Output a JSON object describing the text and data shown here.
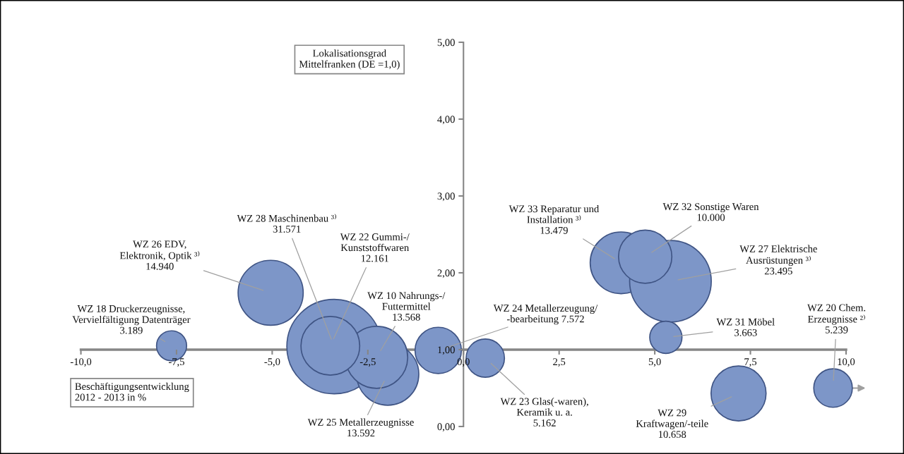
{
  "chart_data": {
    "type": "bubble",
    "xlabel": "Beschäftigungsentwicklung\n2012 - 2013 in %",
    "ylabel": "Lokalisationsgrad\nMittelfranken (DE =1,0)",
    "xlim": [
      -10,
      10
    ],
    "xticks": [
      {
        "value": -10,
        "label": "-10,0"
      },
      {
        "value": -7.5,
        "label": "-7,5"
      },
      {
        "value": -5,
        "label": "-5,0"
      },
      {
        "value": -2.5,
        "label": "-2,5"
      },
      {
        "value": 0,
        "label": "0,0"
      },
      {
        "value": 2.5,
        "label": "2,5"
      },
      {
        "value": 5,
        "label": "5,0"
      },
      {
        "value": 7.5,
        "label": "7,5"
      },
      {
        "value": 10,
        "label": "10,0"
      }
    ],
    "ylim": [
      0,
      5
    ],
    "yticks": [
      {
        "value": 0,
        "label": "0,00"
      },
      {
        "value": 1,
        "label": "1,00"
      },
      {
        "value": 2,
        "label": "2,00"
      },
      {
        "value": 3,
        "label": "3,00"
      },
      {
        "value": 4,
        "label": "4,00"
      },
      {
        "value": 5,
        "label": "5,00"
      }
    ],
    "series": [
      {
        "color": "#7d96c8",
        "x": [
          -7.63,
          -5.04,
          -3.38,
          -1.98,
          -2.27,
          -3.48,
          -0.66,
          0.57,
          4.12,
          5.41,
          4.75,
          5.29,
          7.19,
          9.66
        ],
        "values": [
          1.05,
          1.74,
          1.04,
          0.68,
          0.9,
          1.05,
          0.99,
          0.89,
          2.13,
          1.89,
          2.21,
          1.16,
          0.43,
          0.5
        ],
        "sizes": [
          0.101,
          0.473,
          1,
          0.431,
          0.43,
          0.385,
          0.24,
          0.164,
          0.427,
          0.744,
          0.317,
          0.116,
          0.338,
          0.166
        ],
        "value_labels": [
          "WZ 18 Druckerzeugnisse,\nVervielfältigung Datenträger\n3.189",
          "WZ 26 EDV,\nElektronik, Optik ³⁾\n14.940",
          "WZ 28 Maschinenbau ³⁾\n31.571",
          "WZ 25 Metallerzeugnisse\n13.592",
          "WZ 10 Nahrungs-/\nFuttermittel\n13.568",
          "WZ 22 Gummi-/\nKunststoffwaren\n12.161",
          "WZ 24 Metallerzeugung/\n-bearbeitung 7.572",
          "WZ 23 Glas(-waren),\nKeramik u. a.\n5.162",
          "WZ 33 Reparatur und\nInstallation ³⁾\n13.479",
          "WZ 27 Elektrische\nAusrüstungen ³⁾\n23.495",
          "WZ 32 Sonstige Waren\n10.000",
          "WZ 31 Möbel\n3.663",
          "WZ 29\nKraftwagen/-teile\n10.658",
          "WZ 20 Chem.\nErzeugnisse ²⁾\n5.239"
        ]
      }
    ]
  }
}
